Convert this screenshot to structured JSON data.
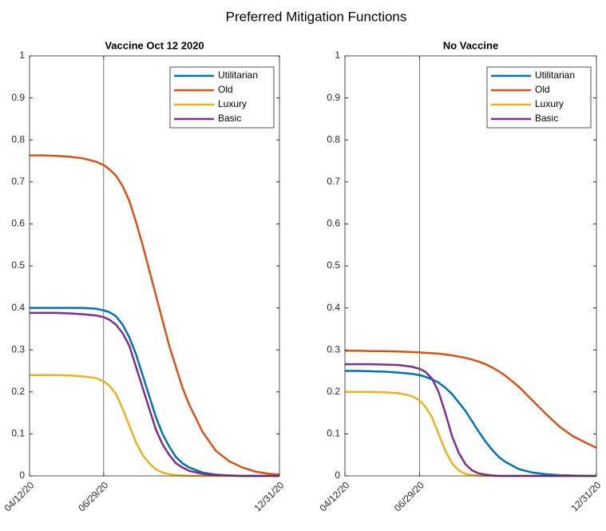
{
  "title": "Preferred Mitigation Functions",
  "chart_data": [
    {
      "type": "line",
      "title": "Vaccine Oct 12 2020",
      "legend": "northeast",
      "vline": "06/29/20",
      "x": [
        "04/12/20",
        "04/26/20",
        "05/10/20",
        "05/24/20",
        "06/07/20",
        "06/21/20",
        "06/29/20",
        "07/05/20",
        "07/12/20",
        "07/19/20",
        "07/26/20",
        "08/02/20",
        "08/09/20",
        "08/16/20",
        "08/23/20",
        "08/30/20",
        "09/06/20",
        "09/13/20",
        "09/20/20",
        "09/27/20",
        "10/11/20",
        "10/25/20",
        "11/08/20",
        "11/22/20",
        "12/06/20",
        "12/20/20",
        "12/31/20"
      ],
      "xlim": [
        "04/12/20",
        "12/31/20"
      ],
      "xticks": [
        "04/12/20",
        "06/29/20",
        "12/31/20"
      ],
      "ylim": [
        0,
        1
      ],
      "yticks": [
        0,
        0.1,
        0.2,
        0.3,
        0.4,
        0.5,
        0.6,
        0.7,
        0.8,
        0.9,
        1
      ],
      "series": [
        {
          "name": "Utilitarian",
          "color": "#0072BD",
          "values": [
            0.4,
            0.4,
            0.4,
            0.4,
            0.4,
            0.398,
            0.394,
            0.39,
            0.38,
            0.36,
            0.33,
            0.29,
            0.24,
            0.19,
            0.14,
            0.1,
            0.07,
            0.045,
            0.03,
            0.02,
            0.008,
            0.003,
            0.001,
            0,
            0,
            0,
            0
          ]
        },
        {
          "name": "Old",
          "color": "#D95319",
          "values": [
            0.763,
            0.763,
            0.762,
            0.76,
            0.756,
            0.748,
            0.74,
            0.73,
            0.715,
            0.69,
            0.655,
            0.605,
            0.55,
            0.49,
            0.43,
            0.37,
            0.31,
            0.26,
            0.21,
            0.17,
            0.105,
            0.06,
            0.035,
            0.02,
            0.01,
            0.005,
            0.003
          ]
        },
        {
          "name": "Luxury",
          "color": "#EDB120",
          "values": [
            0.24,
            0.24,
            0.24,
            0.239,
            0.237,
            0.233,
            0.225,
            0.215,
            0.195,
            0.16,
            0.12,
            0.08,
            0.05,
            0.03,
            0.015,
            0.008,
            0.004,
            0.002,
            0.001,
            0,
            0,
            0,
            0,
            0,
            0,
            0,
            0
          ]
        },
        {
          "name": "Basic",
          "color": "#7E2F8E",
          "values": [
            0.388,
            0.388,
            0.388,
            0.387,
            0.385,
            0.382,
            0.378,
            0.372,
            0.36,
            0.34,
            0.31,
            0.26,
            0.21,
            0.16,
            0.11,
            0.075,
            0.05,
            0.03,
            0.02,
            0.012,
            0.005,
            0.002,
            0.001,
            0,
            0,
            0,
            0
          ]
        }
      ]
    },
    {
      "type": "line",
      "title": "No Vaccine",
      "legend": "northeast",
      "vline": "06/29/20",
      "x": [
        "04/12/20",
        "04/26/20",
        "05/10/20",
        "05/24/20",
        "06/07/20",
        "06/21/20",
        "06/29/20",
        "07/05/20",
        "07/12/20",
        "07/19/20",
        "07/26/20",
        "08/02/20",
        "08/09/20",
        "08/16/20",
        "08/23/20",
        "08/30/20",
        "09/06/20",
        "09/13/20",
        "09/20/20",
        "09/27/20",
        "10/11/20",
        "10/25/20",
        "11/08/20",
        "11/22/20",
        "12/06/20",
        "12/20/20",
        "12/31/20"
      ],
      "xlim": [
        "04/12/20",
        "12/31/20"
      ],
      "xticks": [
        "04/12/20",
        "06/29/20",
        "12/31/20"
      ],
      "ylim": [
        0,
        1
      ],
      "yticks": [
        0,
        0.1,
        0.2,
        0.3,
        0.4,
        0.5,
        0.6,
        0.7,
        0.8,
        0.9,
        1
      ],
      "series": [
        {
          "name": "Utilitarian",
          "color": "#0072BD",
          "values": [
            0.25,
            0.25,
            0.249,
            0.248,
            0.246,
            0.243,
            0.24,
            0.236,
            0.23,
            0.222,
            0.21,
            0.195,
            0.175,
            0.155,
            0.13,
            0.105,
            0.082,
            0.062,
            0.045,
            0.033,
            0.016,
            0.008,
            0.004,
            0.002,
            0.001,
            0,
            0
          ]
        },
        {
          "name": "Old",
          "color": "#D95319",
          "values": [
            0.298,
            0.298,
            0.297,
            0.297,
            0.296,
            0.295,
            0.294,
            0.293,
            0.292,
            0.291,
            0.289,
            0.287,
            0.284,
            0.281,
            0.277,
            0.272,
            0.266,
            0.258,
            0.249,
            0.238,
            0.212,
            0.18,
            0.148,
            0.118,
            0.095,
            0.079,
            0.067
          ]
        },
        {
          "name": "Luxury",
          "color": "#EDB120",
          "values": [
            0.2,
            0.2,
            0.2,
            0.199,
            0.197,
            0.19,
            0.18,
            0.165,
            0.14,
            0.1,
            0.06,
            0.03,
            0.013,
            0.005,
            0.002,
            0.001,
            0,
            0,
            0,
            0,
            0,
            0,
            0,
            0,
            0,
            0,
            0
          ]
        },
        {
          "name": "Basic",
          "color": "#7E2F8E",
          "values": [
            0.266,
            0.266,
            0.266,
            0.265,
            0.264,
            0.26,
            0.255,
            0.248,
            0.232,
            0.2,
            0.15,
            0.095,
            0.055,
            0.028,
            0.013,
            0.006,
            0.003,
            0.001,
            0,
            0,
            0,
            0,
            0,
            0,
            0,
            0,
            0
          ]
        }
      ]
    }
  ]
}
